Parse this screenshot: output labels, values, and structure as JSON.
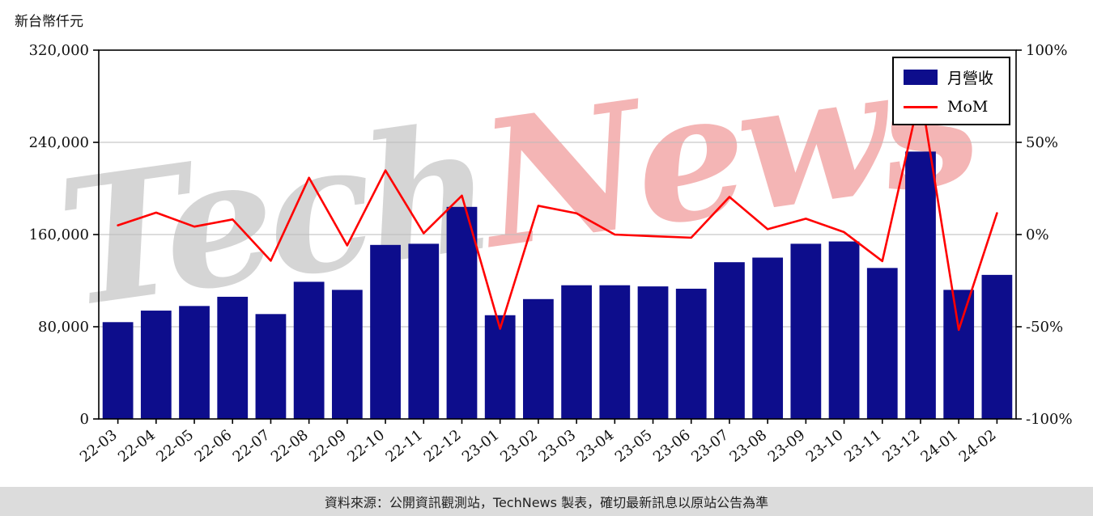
{
  "page": {
    "y_axis_label": "新台幣仟元",
    "caption": "資料來源：公開資訊觀測站，TechNews 製表，確切最新訊息以原站公告為準"
  },
  "watermark": {
    "tech": "Tech",
    "news": "News"
  },
  "legend": {
    "bar_label": "月營收",
    "line_label": "MoM"
  },
  "colors": {
    "bar": "#0d0d8c",
    "line": "#ff0000",
    "grid": "#bbbbbb",
    "axis": "#000000",
    "caption_bg": "#dcdcdc"
  },
  "chart_data": {
    "type": "bar",
    "title": "",
    "categories": [
      "22-03",
      "22-04",
      "22-05",
      "22-06",
      "22-07",
      "22-08",
      "22-09",
      "22-10",
      "22-11",
      "22-12",
      "23-01",
      "23-02",
      "23-03",
      "23-04",
      "23-05",
      "23-06",
      "23-07",
      "23-08",
      "23-09",
      "23-10",
      "23-11",
      "23-12",
      "24-01",
      "24-02"
    ],
    "series": [
      {
        "name": "月營收",
        "type": "bar",
        "axis": "left",
        "values": [
          84000,
          94000,
          98000,
          106000,
          91000,
          119000,
          112000,
          151000,
          152000,
          184000,
          90000,
          104000,
          116000,
          116000,
          115000,
          113000,
          136000,
          140000,
          152000,
          154000,
          131000,
          232000,
          112000,
          125000
        ]
      },
      {
        "name": "MoM",
        "type": "line",
        "axis": "right",
        "values": [
          5,
          11.9,
          4.3,
          8.2,
          -14.2,
          30.8,
          -5.9,
          34.8,
          0.7,
          21.1,
          -51.1,
          15.6,
          11.5,
          0,
          -0.9,
          -1.7,
          20.4,
          2.9,
          8.6,
          1.3,
          -14.4,
          77.1,
          -51.7,
          11.6
        ]
      }
    ],
    "left_axis": {
      "label": "新台幣仟元",
      "ticks": [
        0,
        80000,
        160000,
        240000,
        320000
      ],
      "range": [
        0,
        320000
      ]
    },
    "right_axis": {
      "ticks": [
        -100,
        -50,
        0,
        50,
        100
      ],
      "range": [
        -100,
        100
      ],
      "unit": "%"
    },
    "grid": true,
    "legend_position": "top-right"
  }
}
